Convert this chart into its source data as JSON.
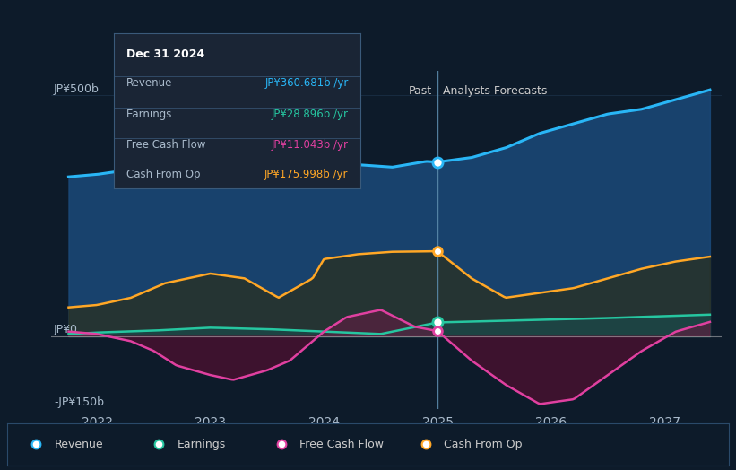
{
  "bg_color": "#0d1b2a",
  "plot_bg_color": "#0d1b2a",
  "divider_x": 2025.0,
  "ylim": [
    -150,
    550
  ],
  "xlim": [
    2021.6,
    2027.5
  ],
  "xticks": [
    2022,
    2023,
    2024,
    2025,
    2026,
    2027
  ],
  "past_label": "Past",
  "forecast_label": "Analysts Forecasts",
  "revenue_color": "#29b6f6",
  "earnings_color": "#26c6a0",
  "fcf_color": "#e040a0",
  "cashop_color": "#ffa726",
  "revenue_fill": "#1a4a7a",
  "earnings_fill": "#1a4a4a",
  "fcf_fill_pos": "#5a2040",
  "fcf_fill_neg": "#4a1030",
  "cashop_fill_color": "#2a3020",
  "tooltip_bg": "#1a2535",
  "tooltip_title": "Dec 31 2024",
  "tooltip_revenue": "JP¥360.681b /yr",
  "tooltip_earnings": "JP¥28.896b /yr",
  "tooltip_fcf": "JP¥11.043b /yr",
  "tooltip_cashop": "JP¥175.998b /yr",
  "revenue_x": [
    2021.75,
    2022.0,
    2022.3,
    2022.7,
    2023.0,
    2023.3,
    2023.6,
    2023.9,
    2024.0,
    2024.3,
    2024.6,
    2024.9,
    2025.0,
    2025.3,
    2025.6,
    2025.9,
    2026.2,
    2026.5,
    2026.8,
    2027.1,
    2027.4
  ],
  "revenue_y": [
    330,
    335,
    345,
    360,
    375,
    378,
    375,
    368,
    360,
    355,
    350,
    362,
    360.681,
    370,
    390,
    420,
    440,
    460,
    470,
    490,
    510
  ],
  "earnings_x": [
    2021.75,
    2022.0,
    2022.5,
    2023.0,
    2023.5,
    2024.0,
    2024.5,
    2025.0,
    2025.5,
    2026.0,
    2026.5,
    2027.0,
    2027.4
  ],
  "earnings_y": [
    5,
    8,
    12,
    18,
    15,
    10,
    5,
    28.896,
    32,
    35,
    38,
    42,
    45
  ],
  "fcf_x": [
    2021.75,
    2022.0,
    2022.3,
    2022.5,
    2022.7,
    2023.0,
    2023.2,
    2023.5,
    2023.7,
    2024.0,
    2024.2,
    2024.5,
    2024.8,
    2025.0,
    2025.3,
    2025.6,
    2025.9,
    2026.2,
    2026.5,
    2026.8,
    2027.1,
    2027.4
  ],
  "fcf_y": [
    10,
    5,
    -10,
    -30,
    -60,
    -80,
    -90,
    -70,
    -50,
    10,
    40,
    55,
    20,
    11.043,
    -50,
    -100,
    -140,
    -130,
    -80,
    -30,
    10,
    30
  ],
  "cashop_x": [
    2021.75,
    2022.0,
    2022.3,
    2022.6,
    2023.0,
    2023.3,
    2023.6,
    2023.9,
    2024.0,
    2024.3,
    2024.6,
    2024.9,
    2025.0,
    2025.3,
    2025.6,
    2025.9,
    2026.2,
    2026.5,
    2026.8,
    2027.1,
    2027.4
  ],
  "cashop_y": [
    60,
    65,
    80,
    110,
    130,
    120,
    80,
    120,
    160,
    170,
    175,
    176,
    175.998,
    120,
    80,
    90,
    100,
    120,
    140,
    155,
    165
  ]
}
